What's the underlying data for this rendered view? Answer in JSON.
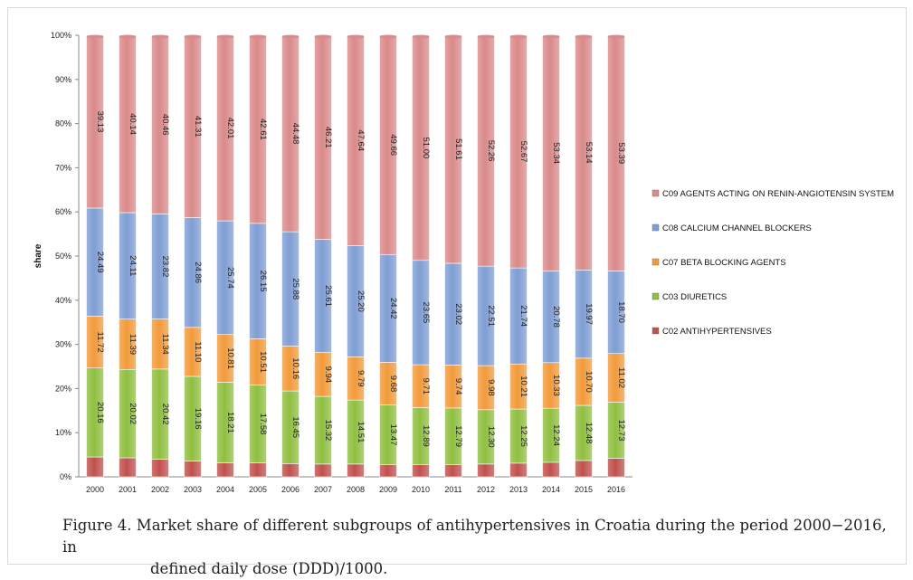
{
  "chart_data": {
    "type": "bar",
    "stacked": true,
    "percent_stacked": true,
    "ylabel": "share",
    "xlabel": "",
    "ylim": [
      0,
      100
    ],
    "yticks": [
      "0%",
      "10%",
      "20%",
      "30%",
      "40%",
      "50%",
      "60%",
      "70%",
      "80%",
      "90%",
      "100%"
    ],
    "categories": [
      "2000",
      "2001",
      "2002",
      "2003",
      "2004",
      "2005",
      "2006",
      "2007",
      "2008",
      "2009",
      "2010",
      "2011",
      "2012",
      "2013",
      "2014",
      "2015",
      "2016"
    ],
    "series": [
      {
        "name": "C02 ANTIHYPERTENSIVES",
        "color": "#c0504d",
        "values": [
          4.5,
          4.3,
          4.0,
          3.6,
          3.2,
          3.2,
          3.0,
          2.9,
          2.9,
          2.8,
          2.8,
          2.8,
          2.9,
          3.1,
          3.3,
          3.7,
          4.2
        ],
        "labels": [
          "",
          "",
          "",
          "",
          "",
          "",
          "",
          "",
          "",
          "",
          "",
          "",
          "",
          "",
          "",
          "",
          ""
        ]
      },
      {
        "name": "C03 DIURETICS",
        "color": "#8fbf3f",
        "values": [
          20.16,
          20.02,
          20.42,
          19.16,
          18.21,
          17.58,
          16.45,
          15.32,
          14.51,
          13.47,
          12.89,
          12.79,
          12.3,
          12.25,
          12.24,
          12.48,
          12.73
        ],
        "labels": [
          "20.16",
          "20.02",
          "20.42",
          "19.16",
          "18.21",
          "17.58",
          "16.45",
          "15.32",
          "14.51",
          "13.47",
          "12.89",
          "12.79",
          "12.30",
          "12.25",
          "12.24",
          "12.48",
          "12.73"
        ]
      },
      {
        "name": "C07 BETA BLOCKING AGENTS",
        "color": "#f29a3a",
        "values": [
          11.72,
          11.39,
          11.34,
          11.1,
          10.81,
          10.51,
          10.16,
          9.94,
          9.79,
          9.68,
          9.71,
          9.74,
          9.98,
          10.21,
          10.33,
          10.7,
          11.02
        ],
        "labels": [
          "11.72",
          "11.39",
          "11.34",
          "11.10",
          "10.81",
          "10.51",
          "10.16",
          "9.94",
          "9.79",
          "9.68",
          "9.71",
          "9.74",
          "9.98",
          "10.21",
          "10.33",
          "10.70",
          "11.02"
        ]
      },
      {
        "name": "C08 CALCIUM CHANNEL BLOCKERS",
        "color": "#7f9ed4",
        "values": [
          24.49,
          24.11,
          23.82,
          24.86,
          25.74,
          26.15,
          25.88,
          25.61,
          25.2,
          24.42,
          23.65,
          23.02,
          22.51,
          21.74,
          20.78,
          19.97,
          18.7
        ],
        "labels": [
          "24.49",
          "24.11",
          "23.82",
          "24.86",
          "25.74",
          "26.15",
          "25.88",
          "25.61",
          "25.20",
          "24.42",
          "23.65",
          "23.02",
          "22.51",
          "21.74",
          "20.78",
          "19.97",
          "18.70"
        ]
      },
      {
        "name": "C09 AGENTS ACTING ON RENIN-ANGIOTENSIN SYSTEM",
        "color": "#d98a89",
        "values": [
          39.13,
          40.14,
          40.46,
          41.31,
          42.01,
          42.61,
          44.48,
          46.21,
          47.64,
          49.66,
          51.0,
          51.61,
          52.26,
          52.67,
          53.34,
          53.14,
          53.39
        ],
        "labels": [
          "39.13",
          "40.14",
          "40.46",
          "41.31",
          "42.01",
          "42.61",
          "44.48",
          "46.21",
          "47.64",
          "49.66",
          "51.00",
          "51.61",
          "52.26",
          "52.67",
          "53.34",
          "53.14",
          "53.39"
        ]
      }
    ],
    "legend_order": [
      "C09 AGENTS ACTING ON RENIN-ANGIOTENSIN SYSTEM",
      "C08 CALCIUM CHANNEL BLOCKERS",
      "C07 BETA BLOCKING AGENTS",
      "C03 DIURETICS",
      "C02 ANTIHYPERTENSIVES"
    ],
    "legend_position": "right",
    "grid": false
  },
  "caption": {
    "line1": "Figure 4.  Market share of different subgroups of antihypertensives in Croatia during the period 2000−2016, in",
    "line2": "defined daily dose (DDD)/1000."
  }
}
